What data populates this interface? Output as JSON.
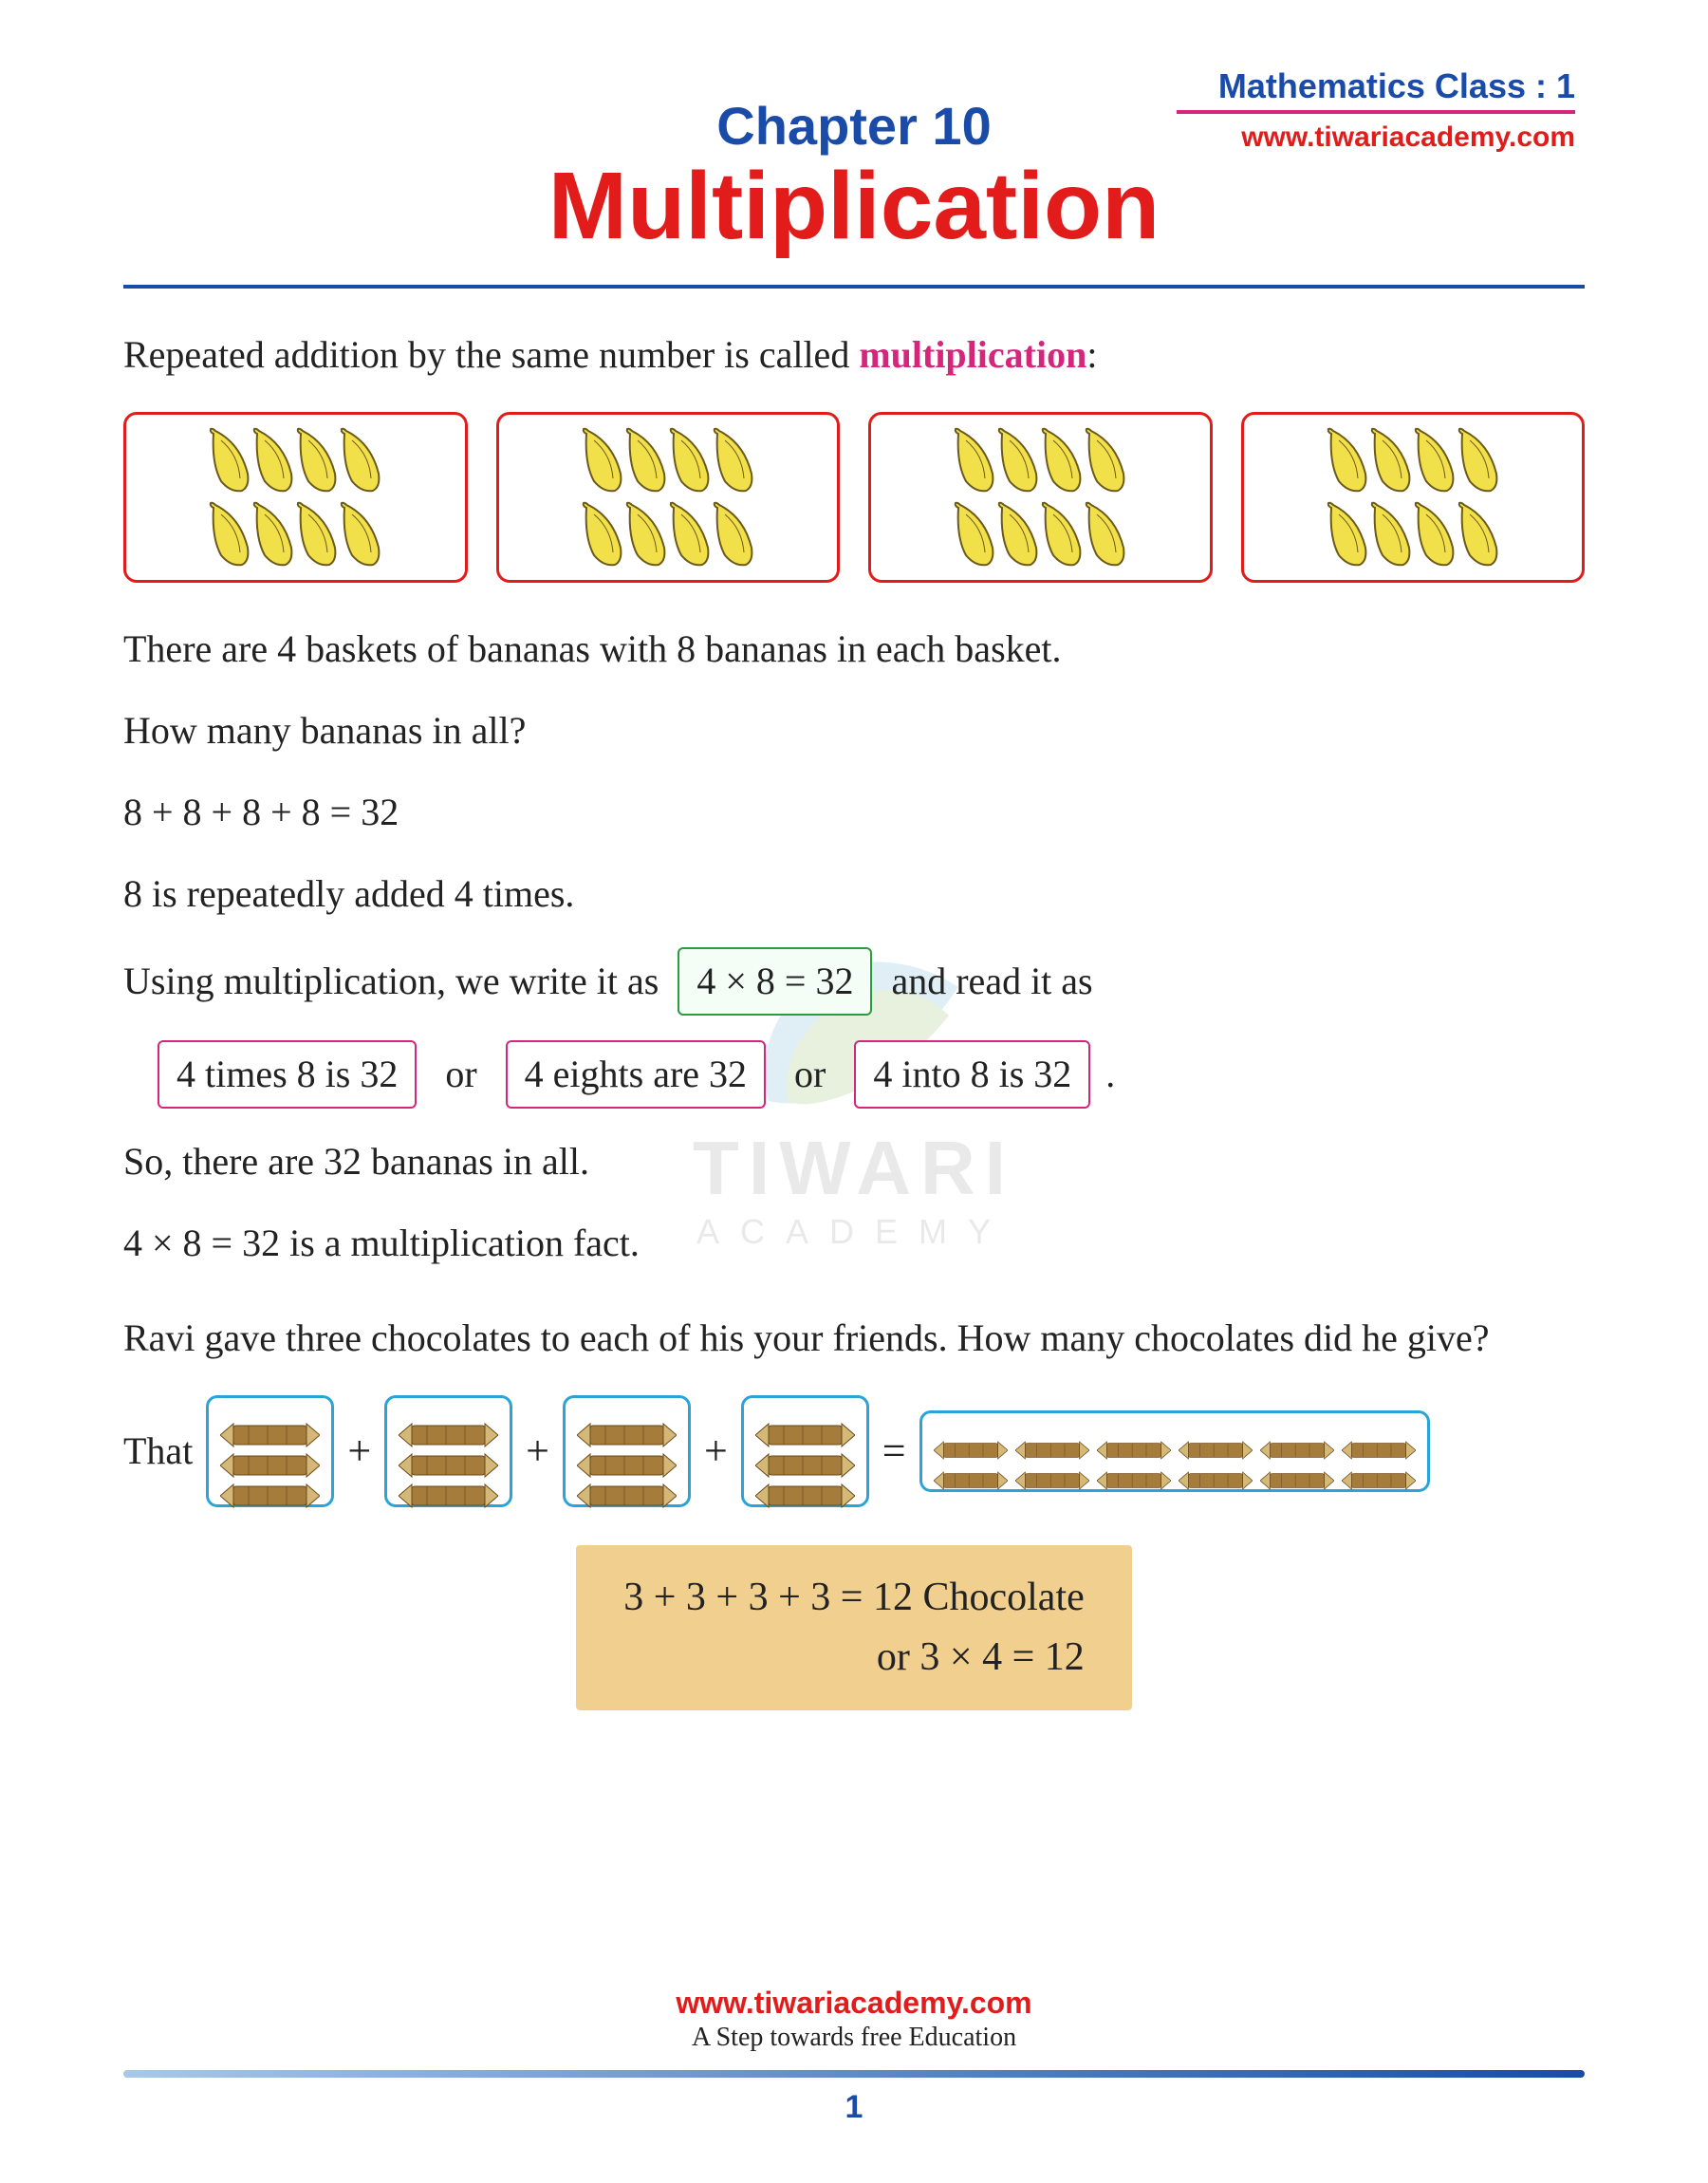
{
  "header": {
    "class_label": "Mathematics Class : 1",
    "website": "www.tiwariacademy.com",
    "underline_color": "#d4267a",
    "label_color": "#1a4ba8",
    "website_color": "#e21b1b"
  },
  "chapter": {
    "label": "Chapter 10",
    "title": "Multiplication",
    "label_color": "#1a4ba8",
    "title_color": "#e21b1b"
  },
  "body": {
    "intro_prefix": "Repeated addition by the same number is called ",
    "intro_emphasis": "multiplication",
    "intro_suffix": ":",
    "bananas": {
      "basket_count": 4,
      "bananas_per_basket": 8,
      "rows_per_basket": 2,
      "per_row": 4,
      "border_color": "#e21b1b",
      "fill_color": "#f2e04a",
      "outline_color": "#6b5a1a"
    },
    "line1": "There are 4 baskets of bananas with 8 bananas in each basket.",
    "line2": "How many bananas in all?",
    "line3": "8 + 8 + 8 + 8 = 32",
    "line4": "8 is repeatedly added 4 times.",
    "line5_prefix": "Using multiplication, we write it as",
    "green_box": "4 × 8 = 32",
    "line5_suffix": "and read it as",
    "pink_box_1": "4 times 8 is 32",
    "pink_box_2": "4 eights are 32",
    "pink_box_3": "4 into 8 is 32",
    "or_text": "or",
    "line6": "So, there are 32 bananas in all.",
    "line7": "4 × 8 = 32 is a multiplication fact.",
    "question2": "Ravi gave three chocolates to each of his your friends. How many chocolates did he give?",
    "that_label": "That",
    "chocolates": {
      "group_count": 4,
      "per_group": 3,
      "total": 12,
      "result_cols": 6,
      "result_rows": 2,
      "border_color": "#2aa4d8",
      "fill_color": "#a67c3c",
      "wrap_color": "#d4b878"
    },
    "answer": {
      "line1": "3 + 3 + 3 + 3 = 12 Chocolate",
      "line2": "or 3 × 4 = 12",
      "bg_color": "#f0cf8f"
    }
  },
  "watermark": {
    "text1": "TIWARI",
    "text2": "ACADEMY",
    "leaf1_color": "#5aa8d0",
    "leaf2_color": "#7fb848"
  },
  "footer": {
    "website": "www.tiwariacademy.com",
    "tagline": "A Step towards free Education",
    "page": "1"
  }
}
